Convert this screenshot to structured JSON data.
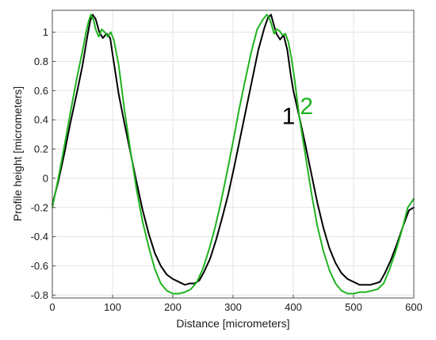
{
  "chart_data": {
    "type": "line",
    "xlabel": "Distance [micrometers]",
    "ylabel": "Profile height [micrometers]",
    "xlim": [
      0,
      600
    ],
    "ylim": [
      -0.82,
      1.15
    ],
    "grid": true,
    "x_ticks": [
      0,
      100,
      200,
      300,
      400,
      500,
      600
    ],
    "y_ticks": [
      -0.8,
      -0.6,
      -0.4,
      -0.2,
      0,
      0.2,
      0.4,
      0.6,
      0.8,
      1
    ],
    "x_tick_labels": [
      "0",
      "100",
      "200",
      "300",
      "400",
      "500",
      "600"
    ],
    "y_tick_labels": [
      "-0.8",
      "-0.6",
      "-0.4",
      "-0.2",
      "0",
      "0.2",
      "0.4",
      "0.6",
      "0.8",
      "1"
    ],
    "annotations": [
      {
        "text": "1",
        "x": 392,
        "y": 0.37,
        "color": "#000000"
      },
      {
        "text": "2",
        "x": 422,
        "y": 0.44,
        "color": "#1fb31f"
      }
    ],
    "series": [
      {
        "color": "#000000",
        "x": [
          0,
          10,
          20,
          30,
          40,
          50,
          58,
          63,
          67,
          72,
          78,
          84,
          90,
          96,
          100,
          110,
          120,
          130,
          140,
          150,
          160,
          170,
          180,
          190,
          200,
          210,
          220,
          228,
          236,
          244,
          252,
          262,
          272,
          282,
          292,
          302,
          312,
          322,
          332,
          342,
          352,
          358,
          363,
          367,
          372,
          378,
          384,
          390,
          396,
          400,
          410,
          420,
          430,
          440,
          450,
          460,
          470,
          480,
          490,
          500,
          510,
          520,
          528,
          536,
          544,
          552,
          562,
          572,
          582,
          592,
          600
        ],
        "y": [
          -0.18,
          -0.02,
          0.17,
          0.38,
          0.57,
          0.77,
          0.97,
          1.08,
          1.12,
          1.09,
          1.0,
          0.96,
          0.99,
          0.96,
          0.85,
          0.58,
          0.37,
          0.17,
          -0.03,
          -0.22,
          -0.38,
          -0.51,
          -0.6,
          -0.66,
          -0.69,
          -0.71,
          -0.73,
          -0.72,
          -0.72,
          -0.7,
          -0.64,
          -0.55,
          -0.42,
          -0.27,
          -0.11,
          0.08,
          0.28,
          0.48,
          0.68,
          0.88,
          1.03,
          1.1,
          1.12,
          1.06,
          0.99,
          0.95,
          0.98,
          0.88,
          0.7,
          0.6,
          0.42,
          0.23,
          0.03,
          -0.17,
          -0.34,
          -0.48,
          -0.58,
          -0.65,
          -0.69,
          -0.71,
          -0.73,
          -0.73,
          -0.73,
          -0.72,
          -0.71,
          -0.65,
          -0.56,
          -0.45,
          -0.33,
          -0.22,
          -0.2
        ]
      },
      {
        "color": "#1fb31f",
        "x": [
          0,
          10,
          20,
          30,
          40,
          50,
          56,
          60,
          64,
          68,
          72,
          77,
          82,
          87,
          92,
          97,
          102,
          110,
          120,
          130,
          140,
          150,
          160,
          170,
          180,
          190,
          200,
          210,
          220,
          230,
          240,
          250,
          260,
          270,
          280,
          290,
          300,
          310,
          320,
          330,
          340,
          350,
          356,
          360,
          364,
          368,
          372,
          377,
          382,
          387,
          392,
          397,
          402,
          410,
          420,
          430,
          440,
          450,
          460,
          470,
          480,
          490,
          500,
          510,
          520,
          530,
          540,
          550,
          560,
          570,
          580,
          590,
          600
        ],
        "y": [
          -0.2,
          0.0,
          0.22,
          0.45,
          0.67,
          0.87,
          1.0,
          1.07,
          1.12,
          1.09,
          1.02,
          0.97,
          1.02,
          1.0,
          0.97,
          1.0,
          0.95,
          0.78,
          0.46,
          0.18,
          -0.08,
          -0.3,
          -0.47,
          -0.62,
          -0.72,
          -0.77,
          -0.79,
          -0.79,
          -0.78,
          -0.76,
          -0.71,
          -0.62,
          -0.49,
          -0.34,
          -0.16,
          0.04,
          0.25,
          0.47,
          0.67,
          0.86,
          1.02,
          1.09,
          1.12,
          1.1,
          1.05,
          0.99,
          1.02,
          1.01,
          0.98,
          0.99,
          0.93,
          0.82,
          0.68,
          0.42,
          0.16,
          -0.1,
          -0.33,
          -0.5,
          -0.63,
          -0.72,
          -0.77,
          -0.79,
          -0.79,
          -0.78,
          -0.78,
          -0.77,
          -0.76,
          -0.72,
          -0.62,
          -0.5,
          -0.36,
          -0.2,
          -0.14
        ]
      }
    ]
  }
}
